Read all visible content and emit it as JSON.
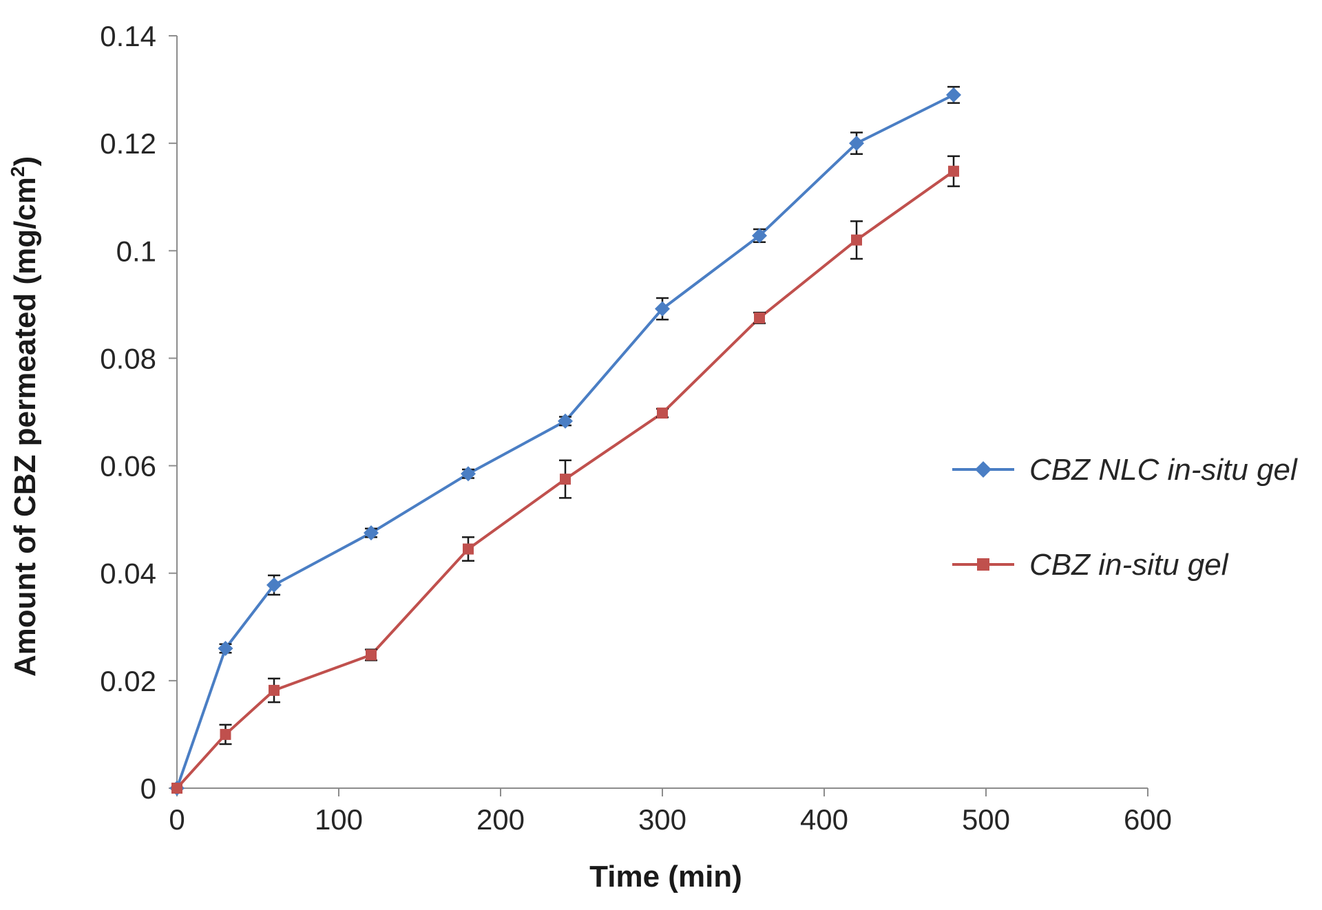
{
  "chart_data": {
    "type": "line",
    "title": "",
    "xlabel": "Time (min)",
    "ylabel_main": "Amount of CBZ permeated (mg/cm",
    "ylabel_sup": "2",
    "ylabel_close": ")",
    "xlim": [
      0,
      600
    ],
    "ylim": [
      0,
      0.14
    ],
    "xticks": [
      0,
      100,
      200,
      300,
      400,
      500,
      600
    ],
    "xtick_labels": [
      "0",
      "100",
      "200",
      "300",
      "400",
      "500",
      "600"
    ],
    "yticks": [
      0,
      0.02,
      0.04,
      0.06,
      0.08,
      0.1,
      0.12,
      0.14
    ],
    "ytick_labels": [
      "0",
      "0.02",
      "0.04",
      "0.06",
      "0.08",
      "0.1",
      "0.12",
      "0.14"
    ],
    "grid": false,
    "legend_position": "right",
    "x": [
      0,
      30,
      60,
      120,
      180,
      240,
      300,
      360,
      420,
      480
    ],
    "series": [
      {
        "name": "CBZ NLC in-situ gel",
        "color": "#4A7EC4",
        "marker": "diamond",
        "values": [
          0,
          0.026,
          0.0378,
          0.0475,
          0.0585,
          0.0683,
          0.0892,
          0.1028,
          0.12,
          0.129
        ],
        "errors": [
          0,
          0.0008,
          0.0018,
          0.0008,
          0.0008,
          0.0008,
          0.002,
          0.0012,
          0.002,
          0.0015
        ]
      },
      {
        "name": "CBZ in-situ gel",
        "color": "#C0504D",
        "marker": "square",
        "values": [
          0,
          0.01,
          0.0182,
          0.0248,
          0.0445,
          0.0575,
          0.0698,
          0.0875,
          0.102,
          0.1148
        ],
        "errors": [
          0,
          0.0018,
          0.0022,
          0.001,
          0.0022,
          0.0035,
          0.0008,
          0.001,
          0.0035,
          0.0028
        ]
      }
    ]
  }
}
